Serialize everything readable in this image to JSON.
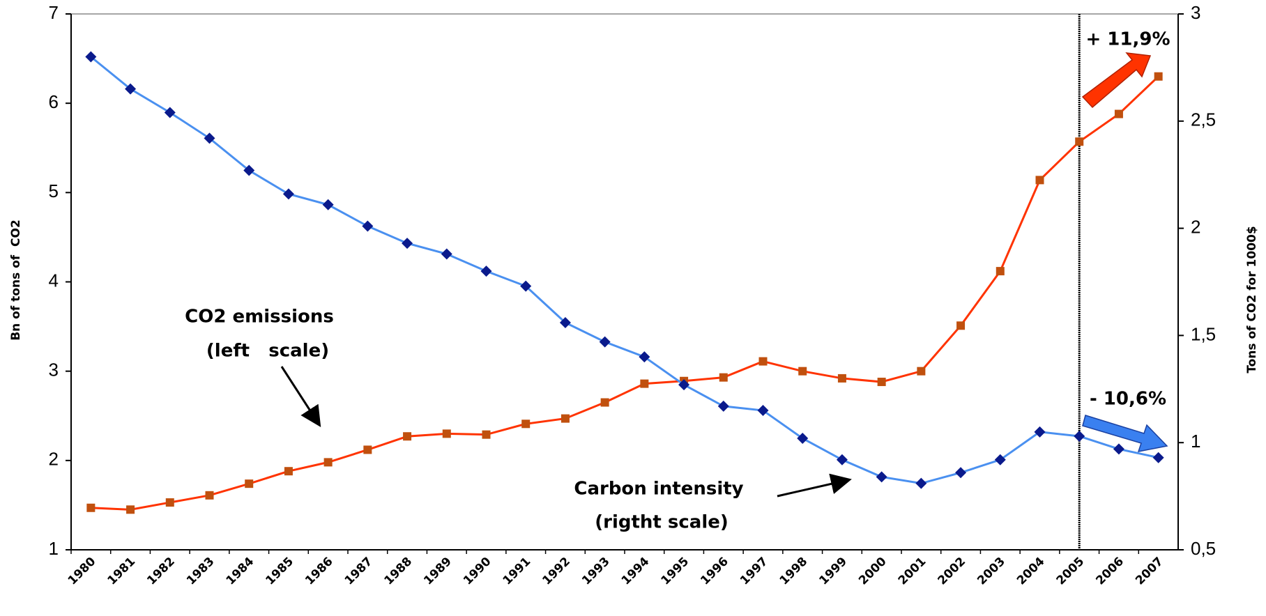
{
  "chart_data": {
    "type": "line",
    "y_label": "Bn of tons of  CO2",
    "y2_label": "Tons of CO2 for 1000$",
    "categories": [
      "1980",
      "1981",
      "1982",
      "1983",
      "1984",
      "1985",
      "1986",
      "1987",
      "1988",
      "1989",
      "1990",
      "1991",
      "1992",
      "1993",
      "1994",
      "1995",
      "1996",
      "1997",
      "1998",
      "1999",
      "2000",
      "2001",
      "2002",
      "2003",
      "2004",
      "2005",
      "2006",
      "2007"
    ],
    "series": [
      {
        "name": "CO2 emissions",
        "color": "#ff3300",
        "marker_color": "#c0500e",
        "marker": "square",
        "values": [
          1.47,
          1.45,
          1.53,
          1.61,
          1.74,
          1.88,
          1.98,
          2.12,
          2.27,
          2.3,
          2.29,
          2.41,
          2.47,
          2.65,
          2.86,
          2.89,
          2.93,
          3.11,
          3.0,
          2.92,
          2.88,
          3.0,
          3.51,
          4.12,
          5.14,
          5.57,
          5.88,
          6.3
        ]
      },
      {
        "name": "Carbon intensity",
        "color": "#4a90f0",
        "marker_color": "#0a1a8c",
        "marker": "diamond",
        "axis": "y2",
        "values": [
          2.8,
          2.65,
          2.54,
          2.42,
          2.27,
          2.16,
          2.11,
          2.01,
          1.93,
          1.88,
          1.8,
          1.73,
          1.56,
          1.47,
          1.4,
          1.27,
          1.17,
          1.15,
          1.02,
          0.92,
          0.84,
          0.81,
          0.86,
          0.92,
          1.05,
          1.03,
          0.97,
          0.93
        ]
      }
    ],
    "ylim": [
      1,
      7
    ],
    "yticks": [
      1,
      2,
      3,
      4,
      5,
      6,
      7
    ],
    "y2lim": [
      0.5,
      3
    ],
    "y2ticks": [
      {
        "value": 0.5,
        "label": "0,5"
      },
      1,
      {
        "value": 1.5,
        "label": "1,5"
      },
      2,
      {
        "value": 2.5,
        "label": "2,5"
      },
      3
    ],
    "annotations": [
      "CO2 emissions",
      "(left   scale)",
      "Carbon intensity",
      "(rigtht scale)",
      "+ 11,9%",
      "- 10,6%"
    ]
  }
}
